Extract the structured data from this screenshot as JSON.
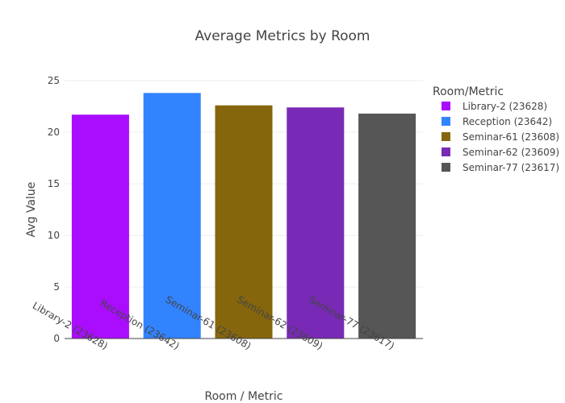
{
  "chart_data": {
    "type": "bar",
    "title": "Average Metrics by Room",
    "xlabel": "Room / Metric",
    "ylabel": "Avg Value",
    "ylim": [
      0,
      25
    ],
    "yticks": [
      0,
      5,
      10,
      15,
      20,
      25
    ],
    "grid": true,
    "categories": [
      "Library-2 (23628)",
      "Reception (23642)",
      "Seminar-61 (23608)",
      "Seminar-62 (23609)",
      "Seminar-77 (23617)"
    ],
    "values": [
      21.7,
      23.8,
      22.6,
      22.4,
      21.8
    ],
    "colors": [
      "#aa0dfe",
      "#3283fe",
      "#85660d",
      "#782ab6",
      "#565656"
    ],
    "legend": {
      "title": "Room/Metric",
      "position": "right",
      "items": [
        "Library-2 (23628)",
        "Reception (23642)",
        "Seminar-61 (23608)",
        "Seminar-62 (23609)",
        "Seminar-77 (23617)"
      ]
    }
  }
}
